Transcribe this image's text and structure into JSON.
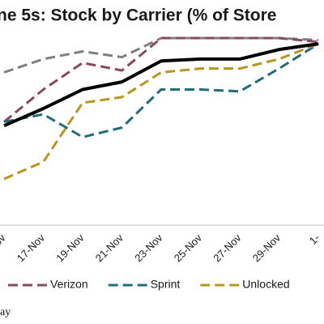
{
  "chart_data": {
    "type": "line",
    "title": "ne 5s: Stock by Carrier (% of Store",
    "categories": [
      "Nov",
      "17-Nov",
      "19-Nov",
      "21-Nov",
      "23-Nov",
      "25-Nov",
      "27-Nov",
      "29-Nov",
      "1-"
    ],
    "ylim": [
      0,
      100
    ],
    "series": [
      {
        "color": "#7f7f7f",
        "dash": true,
        "values": [
          79,
          86,
          90,
          87,
          97,
          97,
          97,
          97,
          96
        ]
      },
      {
        "name": "Verizon",
        "color": "#8b4a5c",
        "dash": true,
        "values": [
          53,
          70,
          84,
          80,
          97,
          97,
          97,
          97,
          95
        ]
      },
      {
        "name": "Sprint",
        "color": "#1f6e7a",
        "dash": true,
        "values": [
          53,
          57,
          45,
          50,
          70,
          70,
          69,
          81,
          94
        ]
      },
      {
        "name": "Unlocked",
        "color": "#b8961e",
        "dash": true,
        "values": [
          23,
          32,
          63,
          66,
          79,
          81,
          81,
          86,
          94
        ]
      },
      {
        "color": "#000000",
        "dash": false,
        "values": [
          51,
          60,
          70,
          74,
          85,
          86,
          86,
          91,
          94
        ]
      }
    ],
    "footer": "ay"
  }
}
